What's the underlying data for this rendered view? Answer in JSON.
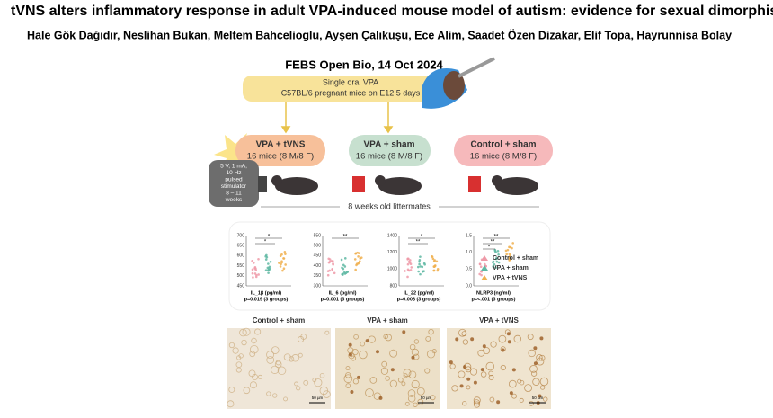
{
  "header": {
    "title": "tVNS alters inflammatory response in adult VPA-induced mouse model of autism: evidence for sexual dimorphism",
    "authors": "Hale Gök Dağıdır, Neslihan Bukan, Meltem Bahcelioglu, Ayşen Çalıkuşu, Ece Alim, Saadet Özen Dizakar, Elif Topa, Hayrunnisa Bolay",
    "journal": "FEBS Open Bio, 14 Oct 2024"
  },
  "treatment": {
    "lines": [
      "Single oral VPA",
      "C57BL/6 pregnant mice on E12.5 days"
    ]
  },
  "groups": [
    {
      "name": "VPA + tVNS",
      "count": "16 mice (8 M/8 F)"
    },
    {
      "name": "VPA + sham",
      "count": "16 mice (8 M/8 F)"
    },
    {
      "name": "Control + sham",
      "count": "16 mice (8 M/8 F)"
    }
  ],
  "stimulator": {
    "lines": [
      "5 V, 1 mA,",
      "10 Hz",
      "pulsed",
      "stimulator",
      "8 – 11",
      "weeks"
    ]
  },
  "littermates": "8 weeks old littermates",
  "charts": [
    {
      "ticks": [
        "700",
        "650",
        "600",
        "550",
        "500",
        "450"
      ],
      "label": "IL_1β (pg/ml)",
      "p": "p=0.019 (3 groups)",
      "sig": [
        "*",
        "*"
      ]
    },
    {
      "ticks": [
        "550",
        "500",
        "450",
        "400",
        "350",
        "300"
      ],
      "label": "IL_6 (pg/ml)",
      "p": "p=0.001 (3 groups)",
      "sig": [
        "**"
      ]
    },
    {
      "ticks": [
        "1400",
        "1200",
        "1000",
        "800"
      ],
      "label": "IL_22 (pg/ml)",
      "p": "p=0.008 (3 groups)",
      "sig": [
        "*",
        "**"
      ]
    },
    {
      "ticks": [
        "1.5",
        "1.0",
        "0.5",
        "0.0"
      ],
      "label": "NLRP3 (ng/ml)",
      "p": "p=<.001 (3 groups)",
      "sig": [
        "**",
        "**",
        "*"
      ]
    }
  ],
  "legend": [
    "Control + sham",
    "VPA + sham",
    "VPA + tVNS"
  ],
  "micrographs": [
    {
      "label": "Control + sham",
      "scale": "50 µm"
    },
    {
      "label": "VPA + sham",
      "scale": "50 µm"
    },
    {
      "label": "VPA + tVNS",
      "scale": "50 µm"
    }
  ]
}
